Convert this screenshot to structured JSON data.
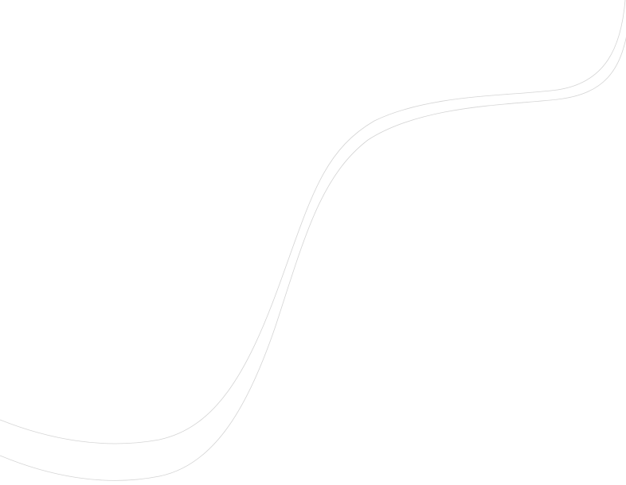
{
  "background_color": "#ffffff",
  "line_color": "#d4d4d4",
  "decoration": "two-parallel-wave-curves"
}
